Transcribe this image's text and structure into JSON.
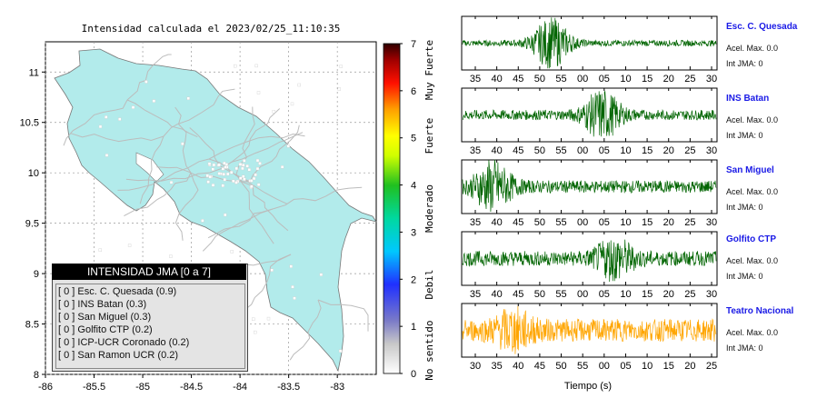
{
  "map": {
    "title": "Intensidad calculada el 2023/02/25_11:10:35",
    "x_ticks": [
      "-86",
      "-85.5",
      "-85",
      "-84.5",
      "-84",
      "-83.5",
      "-83"
    ],
    "y_ticks": [
      "11",
      "10.5",
      "10",
      "9.5",
      "9",
      "8.5",
      "8"
    ],
    "land_color": "#b2ebeb",
    "road_color": "#bcbcbc"
  },
  "colorbar": {
    "ticks": [
      "7",
      "6",
      "5",
      "4",
      "3",
      "2",
      "1",
      "0"
    ],
    "categories": [
      "Muy Fuerte",
      "Fuerte",
      "Moderado",
      "Debil",
      "No sentido"
    ]
  },
  "legend": {
    "title": "INTENSIDAD JMA [0 a 7]",
    "rows": [
      "[ 0 ]  Esc. C. Quesada (0.9)",
      "[ 0 ]  INS Batan (0.3)",
      "[ 0 ]  San Miguel (0.3)",
      "[ 0 ]  Golfito CTP (0.2)",
      "[ 0 ]  ICP-UCR Coronado (0.2)",
      "[ 0 ]  San Ramon UCR (0.2)"
    ]
  },
  "traces": [
    {
      "station": "Esc. C. Quesada",
      "accel": "Acel. Max. 0.0",
      "jma": "Int JMA: 0",
      "color": "#006400",
      "ticks": [
        "35",
        "40",
        "45",
        "50",
        "55",
        "00",
        "05",
        "10",
        "15",
        "20",
        "25",
        "30"
      ]
    },
    {
      "station": "INS Batan",
      "accel": "Acel. Max. 0.0",
      "jma": "Int JMA: 0",
      "color": "#006400",
      "ticks": [
        "35",
        "40",
        "45",
        "50",
        "55",
        "00",
        "05",
        "10",
        "15",
        "20",
        "25",
        "30"
      ]
    },
    {
      "station": "San Miguel",
      "accel": "Acel. Max. 0.0",
      "jma": "Int JMA: 0",
      "color": "#006400",
      "ticks": [
        "35",
        "40",
        "45",
        "50",
        "55",
        "00",
        "05",
        "10",
        "15",
        "20",
        "25",
        "30"
      ]
    },
    {
      "station": "Golfito CTP",
      "accel": "Acel. Max. 0.0",
      "jma": "Int JMA: 0",
      "color": "#006400",
      "ticks": [
        "35",
        "40",
        "45",
        "50",
        "55",
        "00",
        "05",
        "10",
        "15",
        "20",
        "25",
        "30"
      ]
    },
    {
      "station": "Teatro Nacional",
      "accel": "Acel. Max. 0.0",
      "jma": "Int JMA: 0",
      "color": "#ffa500",
      "ticks": [
        "30",
        "35",
        "40",
        "45",
        "50",
        "55",
        "00",
        "05",
        "10",
        "15",
        "20",
        "25"
      ]
    }
  ],
  "time_axis_label": "Tiempo (s)",
  "chart_data": [
    {
      "type": "scatter",
      "title": "Intensidad calculada el 2023/02/25_11:10:35",
      "xlim": [
        -86,
        -82.6
      ],
      "ylim": [
        8,
        11.3
      ],
      "colorbar_range": [
        0,
        7
      ],
      "note_series": "map of Costa Rica with seismic stations"
    },
    {
      "type": "line",
      "series": [
        {
          "name": "Esc. C. Quesada",
          "burst_center": 0.35,
          "burst_amp": 0.95,
          "noise": 0.12
        },
        {
          "name": "INS Batan",
          "burst_center": 0.55,
          "burst_amp": 0.9,
          "noise": 0.2
        },
        {
          "name": "San Miguel",
          "burst_center": 0.12,
          "burst_amp": 0.9,
          "noise": 0.25
        },
        {
          "name": "Golfito CTP",
          "burst_center": 0.6,
          "burst_amp": 0.7,
          "noise": 0.3
        },
        {
          "name": "Teatro Nacional",
          "burst_center": 0.2,
          "burst_amp": 0.6,
          "noise": 0.45
        }
      ],
      "xlabel": "Tiempo (s)"
    }
  ]
}
